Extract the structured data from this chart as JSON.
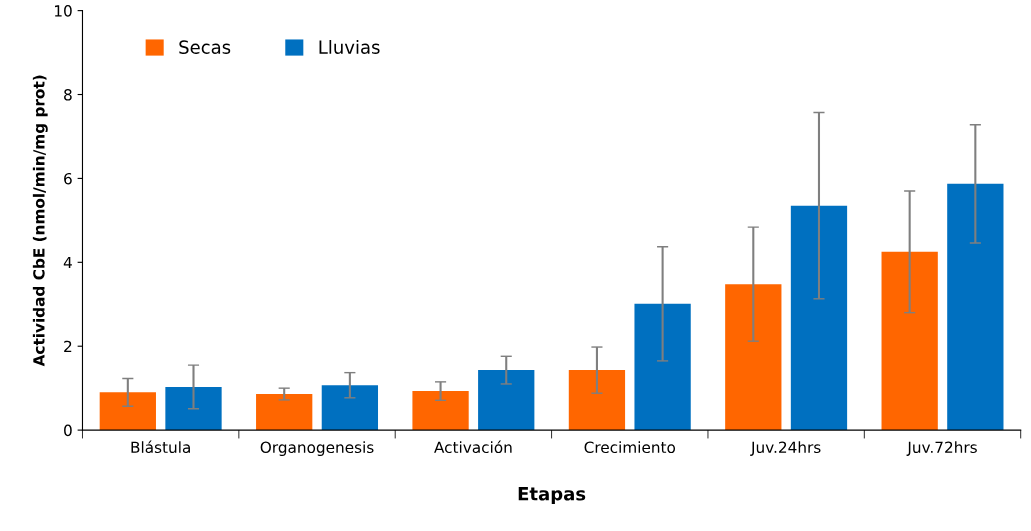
{
  "chart_data": {
    "type": "bar",
    "xlabel": "Etapas",
    "ylabel": "Actividad CbE (nmol/min/mg prot)",
    "categories": [
      "Blástula",
      "Organogenesis",
      "Activación",
      "Crecimiento",
      "Juv.24hrs",
      "Juv.72hrs"
    ],
    "series": [
      {
        "name": "Secas",
        "color": "#ff6600",
        "values": [
          0.9,
          0.86,
          0.93,
          1.43,
          3.48,
          4.25
        ],
        "errors": [
          0.33,
          0.14,
          0.22,
          0.55,
          1.36,
          1.45
        ]
      },
      {
        "name": "Lluvias",
        "color": "#0070c0",
        "values": [
          1.03,
          1.07,
          1.43,
          3.01,
          5.35,
          5.87
        ],
        "errors": [
          0.52,
          0.3,
          0.33,
          1.36,
          2.22,
          1.41
        ]
      }
    ],
    "ylim": [
      0,
      10
    ],
    "yticks": [
      0,
      2,
      4,
      6,
      8,
      10
    ],
    "grid": false,
    "legend": "top left"
  }
}
